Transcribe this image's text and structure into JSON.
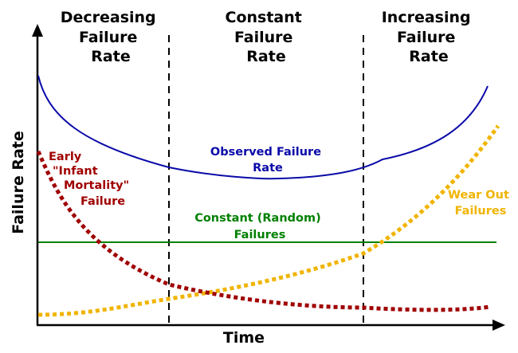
{
  "regions": [
    {
      "id": "decreasing",
      "lines": [
        "Decreasing",
        "Failure",
        "Rate"
      ]
    },
    {
      "id": "constant",
      "lines": [
        "Constant",
        "Failure",
        "Rate"
      ]
    },
    {
      "id": "increasing",
      "lines": [
        "Increasing",
        "Failure",
        "Rate"
      ]
    }
  ],
  "axes": {
    "x_label": "Time",
    "y_label": "Failure Rate"
  },
  "curves": {
    "observed": {
      "label_lines": [
        "Observed Failure",
        "Rate"
      ],
      "color": "#0a0aa8"
    },
    "infant": {
      "label_lines": [
        "Early",
        "\"Infant",
        "Mortality\"",
        "Failure"
      ],
      "color": "#a00000"
    },
    "random": {
      "label_lines": [
        "Constant (Random)",
        "Failures"
      ],
      "color": "#008000"
    },
    "wearout": {
      "label_lines": [
        "Wear Out",
        "Failures"
      ],
      "color": "#f0b400"
    }
  }
}
